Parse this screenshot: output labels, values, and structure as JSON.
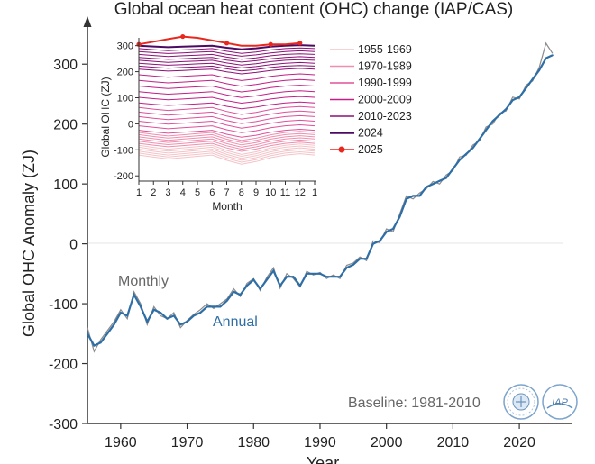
{
  "chart_data": [
    {
      "type": "line",
      "title": "Global ocean heat content (OHC) change (IAP/CAS)",
      "xlabel": "Year",
      "ylabel": "Global OHC Anomaly (ZJ)",
      "xlim": [
        1955,
        2026.5
      ],
      "ylim": [
        -300,
        350
      ],
      "x_ticks": [
        "1960",
        "1970",
        "1980",
        "1990",
        "2000",
        "2010",
        "2020"
      ],
      "y_ticks": [
        "-300",
        "-200",
        "-100",
        "0",
        "100",
        "200",
        "300"
      ],
      "annotations": {
        "monthly": "Monthly",
        "annual": "Annual",
        "baseline": "Baseline: 1981-2010"
      },
      "colors": {
        "monthly": "#8a8a8a",
        "annual": "#2e6ea6",
        "zero_line": "#e6e6e6",
        "axis": "#333333"
      },
      "series": [
        {
          "name": "Annual",
          "x": [
            1955,
            1956,
            1957,
            1958,
            1959,
            1960,
            1961,
            1962,
            1963,
            1964,
            1965,
            1966,
            1967,
            1968,
            1969,
            1970,
            1971,
            1972,
            1973,
            1974,
            1975,
            1976,
            1977,
            1978,
            1979,
            1980,
            1981,
            1982,
            1983,
            1984,
            1985,
            1986,
            1987,
            1988,
            1989,
            1990,
            1991,
            1992,
            1993,
            1994,
            1995,
            1996,
            1997,
            1998,
            1999,
            2000,
            2001,
            2002,
            2003,
            2004,
            2005,
            2006,
            2007,
            2008,
            2009,
            2010,
            2011,
            2012,
            2013,
            2014,
            2015,
            2016,
            2017,
            2018,
            2019,
            2020,
            2021,
            2022,
            2023,
            2024,
            2025
          ],
          "values": [
            -150,
            -170,
            -165,
            -150,
            -135,
            -115,
            -120,
            -85,
            -105,
            -130,
            -110,
            -115,
            -125,
            -120,
            -135,
            -130,
            -120,
            -115,
            -105,
            -105,
            -105,
            -95,
            -80,
            -85,
            -70,
            -60,
            -75,
            -60,
            -45,
            -70,
            -55,
            -55,
            -70,
            -50,
            -50,
            -50,
            -55,
            -55,
            -55,
            -40,
            -35,
            -25,
            -25,
            0,
            5,
            20,
            25,
            45,
            75,
            80,
            80,
            95,
            100,
            105,
            110,
            125,
            140,
            150,
            160,
            175,
            190,
            205,
            215,
            225,
            240,
            245,
            260,
            275,
            290,
            310,
            315
          ]
        },
        {
          "name": "Monthly",
          "x": [
            1955,
            1956,
            1957,
            1958,
            1959,
            1960,
            1961,
            1962,
            1963,
            1964,
            1965,
            1966,
            1967,
            1968,
            1969,
            1970,
            1971,
            1972,
            1973,
            1974,
            1975,
            1976,
            1977,
            1978,
            1979,
            1980,
            1981,
            1982,
            1983,
            1984,
            1985,
            1986,
            1987,
            1988,
            1989,
            1990,
            1991,
            1992,
            1993,
            1994,
            1995,
            1996,
            1997,
            1998,
            1999,
            2000,
            2001,
            2002,
            2003,
            2004,
            2005,
            2006,
            2007,
            2008,
            2009,
            2010,
            2011,
            2012,
            2013,
            2014,
            2015,
            2016,
            2017,
            2018,
            2019,
            2020,
            2021,
            2022,
            2023,
            2024,
            2025
          ],
          "values": [
            -140,
            -180,
            -160,
            -145,
            -130,
            -110,
            -125,
            -80,
            -100,
            -135,
            -105,
            -120,
            -125,
            -115,
            -140,
            -128,
            -118,
            -110,
            -100,
            -108,
            -100,
            -92,
            -75,
            -88,
            -66,
            -58,
            -78,
            -56,
            -40,
            -74,
            -50,
            -58,
            -72,
            -46,
            -52,
            -48,
            -58,
            -52,
            -58,
            -36,
            -32,
            -22,
            -28,
            5,
            2,
            25,
            20,
            50,
            80,
            75,
            85,
            92,
            104,
            100,
            115,
            122,
            145,
            148,
            165,
            172,
            195,
            200,
            218,
            222,
            245,
            242,
            265,
            272,
            295,
            335,
            318
          ]
        }
      ]
    },
    {
      "type": "line",
      "xlabel": "Month",
      "ylabel": "Global OHC (ZJ)",
      "ylim": [
        -220,
        330
      ],
      "x_ticks": [
        "1",
        "2",
        "3",
        "4",
        "5",
        "6",
        "7",
        "8",
        "9",
        "10",
        "11",
        "12",
        "1"
      ],
      "y_ticks": [
        "-200",
        "-100",
        "0",
        "100",
        "200",
        "300"
      ],
      "colors": {
        "1955-1969": "#f4c3c8",
        "1970-1989": "#ee8fb0",
        "1990-1999": "#e0509a",
        "2000-2009": "#c21f88",
        "2010-2023": "#8c1078",
        "2024": "#4d0a63",
        "2025": "#e8281e"
      },
      "seasonal_offsets": [
        0,
        -8,
        -15,
        -10,
        -5,
        0,
        -20,
        -35,
        -25,
        -10,
        0,
        5,
        0
      ],
      "legend_position": "right",
      "series": [
        {
          "name": "1955-1969",
          "baseline": -120
        },
        {
          "name": "1970-1989",
          "baseline": -75
        },
        {
          "name": "1990-1999",
          "baseline": -25
        },
        {
          "name": "2000-2009",
          "baseline": 80
        },
        {
          "name": "2010-2023",
          "baseline": 210
        },
        {
          "name": "2024",
          "baseline": 300
        },
        {
          "name": "2025",
          "months": [
            1,
            2,
            3,
            4,
            5,
            6,
            7,
            8,
            9,
            10,
            11,
            12
          ],
          "values": [
            305,
            315,
            325,
            335,
            330,
            320,
            310,
            300,
            300,
            305,
            305,
            310
          ]
        }
      ]
    }
  ],
  "legend": {
    "items": [
      {
        "label": "1955-1969",
        "color": "#f4c3c8",
        "marker": false
      },
      {
        "label": "1970-1989",
        "color": "#ee8fb0",
        "marker": false
      },
      {
        "label": "1990-1999",
        "color": "#e0509a",
        "marker": false
      },
      {
        "label": "2000-2009",
        "color": "#c21f88",
        "marker": false
      },
      {
        "label": "2010-2023",
        "color": "#8c1078",
        "marker": false
      },
      {
        "label": "2024",
        "color": "#4d0a63",
        "marker": false
      },
      {
        "label": "2025",
        "color": "#e8281e",
        "marker": true
      }
    ]
  },
  "logos": {
    "left": "IAP/CAS seal",
    "right": "IAP"
  }
}
